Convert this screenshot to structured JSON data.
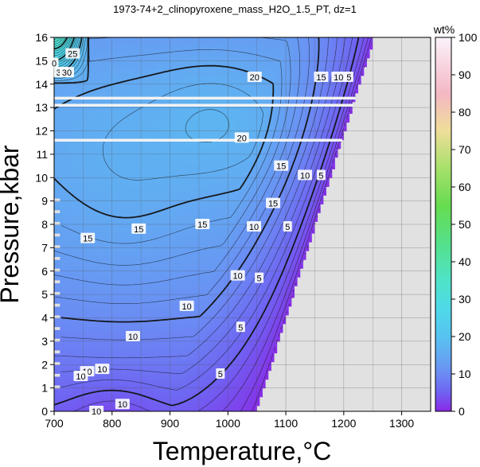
{
  "chart_data": {
    "type": "heatmap",
    "title": "1973-74+2_clinopyroxene_mass_H2O_1.5_PT, dz=1",
    "xlabel": "Temperature,°C",
    "ylabel": "Pressure,kbar",
    "xlim": [
      700,
      1350
    ],
    "ylim": [
      0,
      16
    ],
    "x_ticks": [
      "700",
      "800",
      "900",
      "1000",
      "1100",
      "1200",
      "1300"
    ],
    "y_ticks": [
      "0",
      "1",
      "2",
      "3",
      "4",
      "5",
      "6",
      "7",
      "8",
      "9",
      "10",
      "11",
      "12",
      "13",
      "14",
      "15",
      "16"
    ],
    "grid": true,
    "colorbar": {
      "label": "wt%",
      "range": [
        0,
        100
      ],
      "ticks": [
        "0",
        "10",
        "20",
        "30",
        "40",
        "50",
        "60",
        "70",
        "80",
        "90",
        "100"
      ],
      "stops": [
        {
          "v": 0,
          "color": "#8a28e6"
        },
        {
          "v": 5,
          "color": "#6f62f2"
        },
        {
          "v": 10,
          "color": "#6b8cf3"
        },
        {
          "v": 15,
          "color": "#63a9f2"
        },
        {
          "v": 20,
          "color": "#57c3f0"
        },
        {
          "v": 27,
          "color": "#4fd8ea"
        },
        {
          "v": 35,
          "color": "#4fe3c8"
        },
        {
          "v": 45,
          "color": "#55e08a"
        },
        {
          "v": 55,
          "color": "#66dc4f"
        },
        {
          "v": 65,
          "color": "#a7e06a"
        },
        {
          "v": 75,
          "color": "#eede99"
        },
        {
          "v": 85,
          "color": "#f4b7c4"
        },
        {
          "v": 100,
          "color": "#fbf2fb"
        }
      ]
    },
    "no_data_color": "#e1e1e1",
    "contour_labels": [
      {
        "text": "25",
        "x": 732,
        "y": 15.3
      },
      {
        "text": "30",
        "x": 712,
        "y": 14.5
      },
      {
        "text": "30",
        "x": 722,
        "y": 14.5
      },
      {
        "text": "0",
        "x": 700,
        "y": 14.9
      },
      {
        "text": "20",
        "x": 1046,
        "y": 14.3
      },
      {
        "text": "15",
        "x": 1161,
        "y": 14.3
      },
      {
        "text": "10",
        "x": 1191,
        "y": 14.3
      },
      {
        "text": "5",
        "x": 1209,
        "y": 14.3
      },
      {
        "text": "20",
        "x": 1024,
        "y": 11.7
      },
      {
        "text": "15",
        "x": 1092,
        "y": 10.5
      },
      {
        "text": "10",
        "x": 1133,
        "y": 10.1
      },
      {
        "text": "5",
        "x": 1161,
        "y": 10.1
      },
      {
        "text": "15",
        "x": 1078,
        "y": 8.9
      },
      {
        "text": "15",
        "x": 956,
        "y": 8.0
      },
      {
        "text": "15",
        "x": 846,
        "y": 7.8
      },
      {
        "text": "15",
        "x": 758,
        "y": 7.4
      },
      {
        "text": "10",
        "x": 1045,
        "y": 7.9
      },
      {
        "text": "5",
        "x": 1103,
        "y": 7.9
      },
      {
        "text": "10",
        "x": 1017,
        "y": 5.8
      },
      {
        "text": "5",
        "x": 1054,
        "y": 5.7
      },
      {
        "text": "10",
        "x": 929,
        "y": 4.5
      },
      {
        "text": "5",
        "x": 1022,
        "y": 3.6
      },
      {
        "text": "10",
        "x": 836,
        "y": 3.2
      },
      {
        "text": "10",
        "x": 783,
        "y": 1.8
      },
      {
        "text": "10",
        "x": 757,
        "y": 1.7
      },
      {
        "text": "10",
        "x": 746,
        "y": 1.5
      },
      {
        "text": "5",
        "x": 987,
        "y": 1.6
      },
      {
        "text": "10",
        "x": 818,
        "y": 0.3
      },
      {
        "text": "10",
        "x": 773,
        "y": 0.0
      }
    ]
  }
}
